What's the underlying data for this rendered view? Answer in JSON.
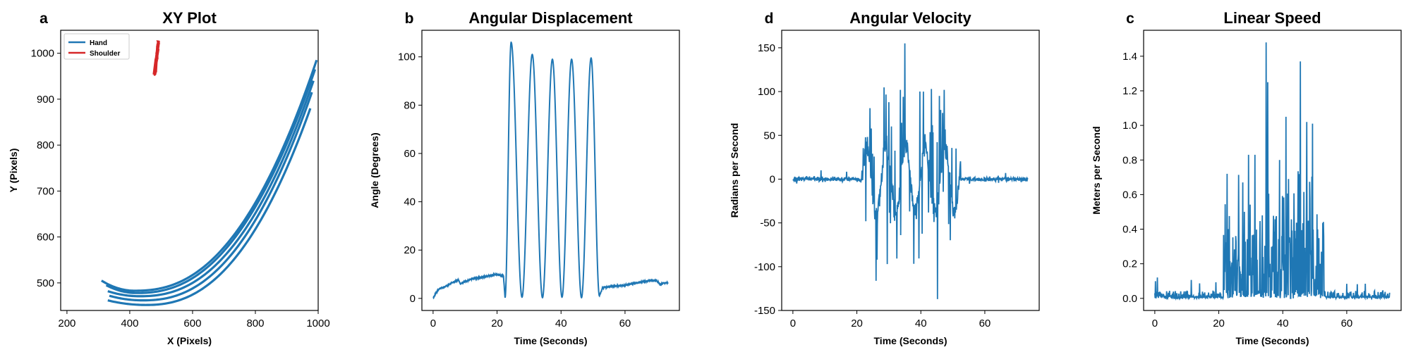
{
  "chart_data": [
    {
      "letter": "a",
      "title": "XY Plot",
      "type": "line",
      "xlabel": "X (Pixels)",
      "ylabel": "Y (Pixels)",
      "xlim": [
        180,
        1000
      ],
      "ylim": [
        440,
        1050
      ],
      "xticks": [
        200,
        400,
        600,
        800,
        1000
      ],
      "yticks": [
        500,
        600,
        700,
        800,
        900,
        1000
      ],
      "legend": "top-left",
      "series": [
        {
          "name": "Hand",
          "color": "#1f77b4",
          "kind": "xy-loops",
          "loops": [
            {
              "x0": 310,
              "y0": 505,
              "xmin": 415,
              "ymin": 483,
              "x1": 995,
              "y1": 985
            },
            {
              "x0": 325,
              "y0": 495,
              "xmin": 420,
              "ymin": 478,
              "x1": 990,
              "y1": 965
            },
            {
              "x0": 330,
              "y0": 482,
              "xmin": 430,
              "ymin": 471,
              "x1": 985,
              "y1": 940
            },
            {
              "x0": 335,
              "y0": 472,
              "xmin": 440,
              "ymin": 462,
              "x1": 980,
              "y1": 915
            },
            {
              "x0": 330,
              "y0": 462,
              "xmin": 450,
              "ymin": 452,
              "x1": 975,
              "y1": 880
            }
          ]
        },
        {
          "name": "Shoulder",
          "color": "#d62728",
          "kind": "xy-cluster",
          "xrange": [
            470,
            495
          ],
          "yrange": [
            952,
            1025
          ]
        }
      ]
    },
    {
      "letter": "b",
      "title": "Angular Displacement",
      "type": "line",
      "xlabel": "Time (Seconds)",
      "ylabel": "Angle (Degrees)",
      "xlim": [
        -3.5,
        77
      ],
      "ylim": [
        -5,
        111
      ],
      "xticks": [
        0,
        20,
        40,
        60
      ],
      "yticks": [
        0,
        20,
        40,
        60,
        80,
        100
      ],
      "series": [
        {
          "name": "",
          "color": "#1f77b4",
          "kind": "angle",
          "duration": 73.5,
          "points": [
            [
              0,
              0
            ],
            [
              1,
              2.5
            ],
            [
              2,
              4
            ],
            [
              4,
              5
            ],
            [
              6,
              6.5
            ],
            [
              8,
              7.5
            ],
            [
              8.5,
              6
            ],
            [
              10,
              7
            ],
            [
              12,
              8
            ],
            [
              14,
              8.5
            ],
            [
              16,
              9
            ],
            [
              18,
              9.5
            ],
            [
              20,
              10
            ],
            [
              21,
              9.5
            ],
            [
              22,
              9.3
            ],
            [
              22.5,
              0.3
            ]
          ],
          "peaks": [
            [
              24.4,
              106
            ],
            [
              31.0,
              101
            ],
            [
              37.3,
              99
            ],
            [
              43.3,
              99
            ],
            [
              49.4,
              99.5
            ]
          ],
          "troughs": [
            [
              22.5,
              0.3
            ],
            [
              27.8,
              0.5
            ],
            [
              34.2,
              0.3
            ],
            [
              40.3,
              0.5
            ],
            [
              46.4,
              0.3
            ],
            [
              52.0,
              1.0
            ]
          ],
          "tail": [
            [
              52.0,
              1.0
            ],
            [
              53,
              4.5
            ],
            [
              56,
              5
            ],
            [
              60,
              5.5
            ],
            [
              62,
              6
            ],
            [
              64,
              6.5
            ],
            [
              66,
              7
            ],
            [
              68,
              7.5
            ],
            [
              70,
              7.2
            ],
            [
              71,
              5.8
            ],
            [
              72,
              6.3
            ],
            [
              73.5,
              6.5
            ]
          ]
        }
      ]
    },
    {
      "letter": "d",
      "title": "Angular Velocity",
      "type": "line",
      "xlabel": "Time (Seconds)",
      "ylabel": "Radians per Second",
      "xlim": [
        -3.5,
        77
      ],
      "ylim": [
        -150,
        170
      ],
      "xticks": [
        0,
        20,
        40,
        60
      ],
      "yticks": [
        -150,
        -100,
        -50,
        0,
        50,
        100,
        150
      ],
      "series": [
        {
          "name": "",
          "color": "#1f77b4",
          "kind": "velocity",
          "duration": 73.5,
          "active": [
            21.5,
            52.5
          ],
          "spikes": [
            [
              35.0,
              155
            ],
            [
              45.2,
              -137
            ],
            [
              43.3,
              103
            ],
            [
              33.6,
              102
            ],
            [
              39.7,
              100
            ],
            [
              47.3,
              102
            ],
            [
              29.5,
              -97
            ],
            [
              45.8,
              95
            ],
            [
              24.1,
              81
            ],
            [
              26.3,
              -92
            ]
          ]
        }
      ]
    },
    {
      "letter": "c",
      "title": "Linear Speed",
      "type": "line",
      "xlabel": "Time (Seconds)",
      "ylabel": "Meters per Second",
      "xlim": [
        -3.5,
        77
      ],
      "ylim": [
        -0.07,
        1.55
      ],
      "xticks": [
        0,
        20,
        40,
        60
      ],
      "yticks": [
        0.0,
        0.2,
        0.4,
        0.6,
        0.8,
        1.0,
        1.2,
        1.4
      ],
      "series": [
        {
          "name": "",
          "color": "#1f77b4",
          "kind": "speed",
          "duration": 73.5,
          "active": [
            21.5,
            53.0
          ],
          "spikes": [
            [
              34.8,
              1.48
            ],
            [
              45.5,
              1.37
            ],
            [
              35.3,
              1.25
            ],
            [
              41.0,
              1.05
            ],
            [
              47.5,
              1.02
            ],
            [
              49.3,
              1.01
            ],
            [
              29.3,
              0.83
            ],
            [
              31.3,
              0.83
            ],
            [
              22.6,
              0.72
            ],
            [
              39.0,
              0.8
            ]
          ]
        }
      ]
    }
  ]
}
